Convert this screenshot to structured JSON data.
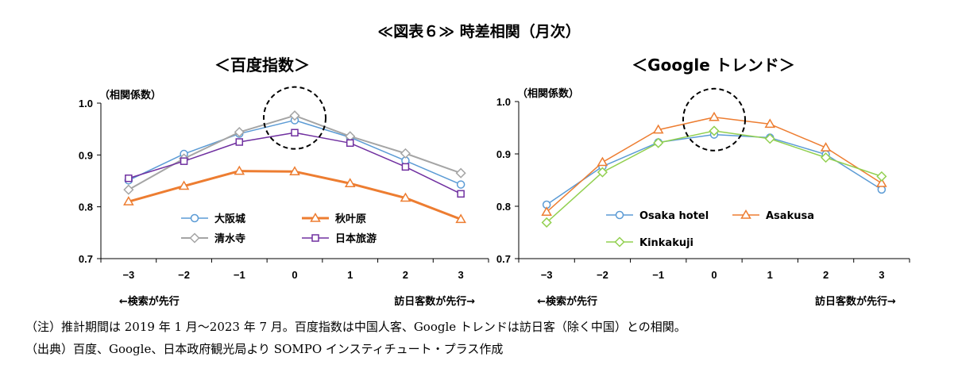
{
  "figure": {
    "title": "≪図表６≫ 時差相関（月次）",
    "notes": [
      "（注）推計期間は 2019 年 1 月～2023 年 7 月。百度指数は中国人客、Google トレンドは訪日客（除く中国）との相関。",
      "（出典）百度、Google、日本政府観光局より SOMPO インスティチュート・プラス作成"
    ]
  },
  "chart_data": [
    {
      "type": "line",
      "title": "＜百度指数＞",
      "ylabel": "（相関係数）",
      "ylim": [
        0.7,
        1.0
      ],
      "yticks": [
        "0.7",
        "0.8",
        "0.9",
        "1.0"
      ],
      "x": [
        -3,
        -2,
        -1,
        0,
        1,
        2,
        3
      ],
      "xtick_labels": [
        "−3",
        "−2",
        "−1",
        "0",
        "1",
        "2",
        "3"
      ],
      "direction_left": "←検索が先行",
      "direction_right": "訪日客数が先行→",
      "highlight_lag": 0,
      "legend_placement": "bottom-center",
      "series": [
        {
          "name": "大阪城",
          "color": "#5b9bd5",
          "marker": "circle",
          "width": 1.5,
          "values": [
            0.851,
            0.902,
            0.941,
            0.967,
            0.934,
            0.889,
            0.843
          ]
        },
        {
          "name": "秋叶原",
          "color": "#ed7d31",
          "marker": "triangle",
          "width": 3,
          "values": [
            0.81,
            0.84,
            0.869,
            0.868,
            0.845,
            0.817,
            0.776
          ]
        },
        {
          "name": "清水寺",
          "color": "#a5a5a5",
          "marker": "diamond",
          "width": 2,
          "values": [
            0.833,
            0.893,
            0.944,
            0.976,
            0.936,
            0.903,
            0.865
          ]
        },
        {
          "name": "日本旅游",
          "color": "#7030a0",
          "marker": "square",
          "width": 1.5,
          "values": [
            0.855,
            0.888,
            0.925,
            0.943,
            0.923,
            0.877,
            0.825
          ]
        }
      ]
    },
    {
      "type": "line",
      "title": "＜Google トレンド＞",
      "ylabel": "（相関係数）",
      "ylim": [
        0.7,
        1.0
      ],
      "yticks": [
        "0.7",
        "0.8",
        "0.9",
        "1.0"
      ],
      "x": [
        -3,
        -2,
        -1,
        0,
        1,
        2,
        3
      ],
      "xtick_labels": [
        "−3",
        "−2",
        "−1",
        "0",
        "1",
        "2",
        "3"
      ],
      "direction_left": "←検索が先行",
      "direction_right": "訪日客数が先行→",
      "highlight_lag": 0,
      "legend_placement": "bottom-center",
      "series": [
        {
          "name": "Osaka hotel",
          "color": "#5b9bd5",
          "marker": "circle",
          "width": 1.5,
          "values": [
            0.803,
            0.876,
            0.922,
            0.937,
            0.931,
            0.899,
            0.832
          ]
        },
        {
          "name": "Asakusa",
          "color": "#ed7d31",
          "marker": "triangle",
          "width": 1.5,
          "values": [
            0.789,
            0.884,
            0.946,
            0.97,
            0.957,
            0.912,
            0.844
          ]
        },
        {
          "name": "Kinkakuji",
          "color": "#92d050",
          "marker": "diamond",
          "width": 1.5,
          "values": [
            0.769,
            0.865,
            0.921,
            0.944,
            0.929,
            0.893,
            0.857
          ]
        }
      ]
    }
  ]
}
